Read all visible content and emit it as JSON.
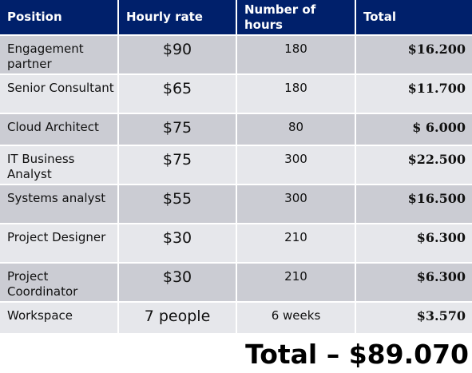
{
  "table": {
    "headers": [
      "Position",
      "Hourly rate",
      "Number of hours",
      "Total"
    ],
    "rows": [
      {
        "position": "Engagement partner",
        "rate": "$90",
        "hours": "180",
        "total": "$16.200"
      },
      {
        "position": "Senior Consultant",
        "rate": "$65",
        "hours": "180",
        "total": "$11.700"
      },
      {
        "position": "Cloud Architect",
        "rate": "$75",
        "hours": "80",
        "total": "$ 6.000"
      },
      {
        "position": "IT Business Analyst",
        "rate": "$75",
        "hours": "300",
        "total": "$22.500"
      },
      {
        "position": "Systems analyst",
        "rate": "$55",
        "hours": "300",
        "total": "$16.500"
      },
      {
        "position": "Project Designer",
        "rate": "$30",
        "hours": "210",
        "total": "$6.300"
      },
      {
        "position": "Project Coordinator",
        "rate": "$30",
        "hours": "210",
        "total": "$6.300"
      },
      {
        "position": "Workspace",
        "rate": "7 people",
        "hours": "6 weeks",
        "total": "$3.570"
      }
    ]
  },
  "grand_total": "Total – $89.070",
  "colors": {
    "header_bg": "#00206b",
    "row_dark": "#cbccd3",
    "row_light": "#e6e7eb"
  }
}
